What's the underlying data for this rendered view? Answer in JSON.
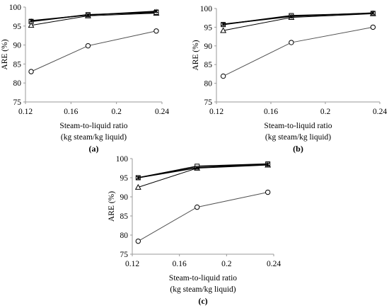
{
  "chart_data": [
    {
      "type": "line",
      "panel_label": "(a)",
      "xlabel_line1": "Steam-to-liquid ratio",
      "xlabel_line2": "(kg steam/kg liquid)",
      "ylabel": "ARE (%)",
      "xlim": [
        0.12,
        0.24
      ],
      "ylim": [
        75,
        100
      ],
      "xticks": [
        "0.12",
        "0.16",
        "0.2",
        "0.24"
      ],
      "yticks": [
        "75",
        "80",
        "85",
        "90",
        "95",
        "100"
      ],
      "grid": false,
      "x": [
        0.125,
        0.175,
        0.235
      ],
      "series": [
        {
          "marker": "circle",
          "values": [
            83.0,
            89.8,
            93.7
          ]
        },
        {
          "marker": "triangle",
          "values": [
            95.2,
            97.7,
            98.4
          ]
        },
        {
          "marker": "square",
          "values": [
            96.2,
            98.0,
            98.6
          ]
        },
        {
          "marker": "star",
          "values": [
            96.4,
            97.9,
            98.9
          ]
        }
      ]
    },
    {
      "type": "line",
      "panel_label": "(b)",
      "xlabel_line1": "Steam-to-liquid ratio",
      "xlabel_line2": "(kg steam/kg liquid)",
      "ylabel": "ARE (%)",
      "xlim": [
        0.12,
        0.24
      ],
      "ylim": [
        75,
        100
      ],
      "xticks": [
        "0.12",
        "0.16",
        "0.2",
        "0.24"
      ],
      "yticks": [
        "75",
        "80",
        "85",
        "90",
        "95",
        "100"
      ],
      "grid": false,
      "x": [
        0.125,
        0.175,
        0.235
      ],
      "series": [
        {
          "marker": "circle",
          "values": [
            81.9,
            90.9,
            95.0
          ]
        },
        {
          "marker": "triangle",
          "values": [
            94.1,
            97.6,
            98.6
          ]
        },
        {
          "marker": "square",
          "values": [
            95.7,
            98.1,
            98.7
          ]
        },
        {
          "marker": "star",
          "values": [
            95.8,
            97.9,
            98.8
          ]
        }
      ]
    },
    {
      "type": "line",
      "panel_label": "(c)",
      "xlabel_line1": "Steam-to-liquid ratio",
      "xlabel_line2": "(kg steam/kg liquid)",
      "ylabel": "ARE (%)",
      "xlim": [
        0.12,
        0.24
      ],
      "ylim": [
        75,
        100
      ],
      "xticks": [
        "0.12",
        "0.16",
        "0.2",
        "0.24"
      ],
      "yticks": [
        "75",
        "80",
        "85",
        "90",
        "95",
        "100"
      ],
      "grid": false,
      "x": [
        0.125,
        0.175,
        0.235
      ],
      "series": [
        {
          "marker": "circle",
          "values": [
            78.4,
            87.3,
            91.2
          ]
        },
        {
          "marker": "triangle",
          "values": [
            92.5,
            97.5,
            98.3
          ]
        },
        {
          "marker": "square",
          "values": [
            95.0,
            98.0,
            98.6
          ]
        },
        {
          "marker": "star",
          "values": [
            95.0,
            97.6,
            98.5
          ]
        }
      ]
    }
  ],
  "colors": {
    "line": "#000000",
    "axis": "#9a9a9a",
    "circle_line": "#505050",
    "marker_fill": "#ffffff"
  }
}
